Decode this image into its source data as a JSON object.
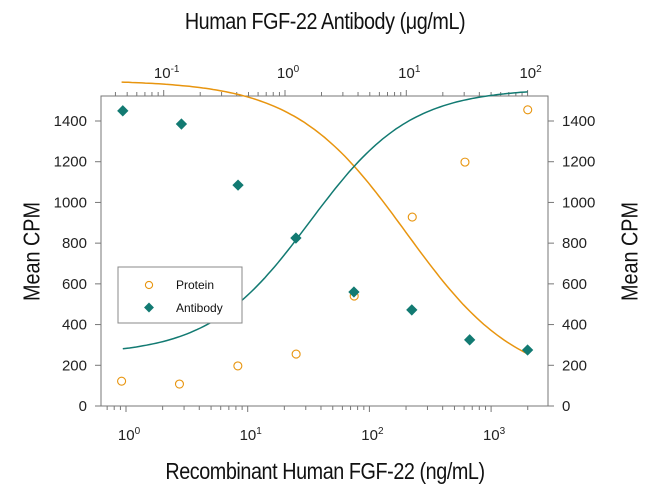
{
  "chart_data": {
    "type": "scatter",
    "title_top": "Human FGF-22 Antibody (μg/mL)",
    "xlabel": "Recombinant Human FGF-22 (ng/mL)",
    "ylabel_left": "Mean CPM",
    "ylabel_right": "Mean CPM",
    "x_bottom": {
      "scale": "log",
      "range": [
        0.7,
        3000
      ],
      "ticks": [
        1,
        10,
        100,
        1000
      ],
      "tick_labels": [
        "10^0",
        "10^1",
        "10^2",
        "10^3"
      ]
    },
    "x_top": {
      "scale": "log",
      "range": [
        0.04,
        140
      ],
      "ticks": [
        0.1,
        1,
        10,
        100
      ],
      "tick_labels": [
        "10^-1",
        "10^0",
        "10^1",
        "10^2"
      ]
    },
    "y": {
      "range": [
        0,
        1520
      ],
      "ticks": [
        0,
        200,
        400,
        600,
        800,
        1000,
        1200,
        1400
      ]
    },
    "legend": {
      "position": "inside-left",
      "entries": [
        "Protein",
        "Antibody"
      ]
    },
    "grid": false,
    "series": [
      {
        "name": "Protein",
        "axis": "bottom",
        "marker": "open-circle",
        "color": "#e8950f",
        "x": [
          0.92,
          2.75,
          8.3,
          25,
          75,
          225,
          610,
          2000
        ],
        "y": [
          122,
          108,
          197,
          255,
          540,
          928,
          1198,
          1455
        ],
        "fit": "4PL sigmoid increasing"
      },
      {
        "name": "Antibody",
        "axis": "top",
        "marker": "filled-diamond",
        "color": "#127a72",
        "x": [
          0.046,
          0.14,
          0.41,
          1.23,
          3.7,
          11.1,
          33.3,
          100
        ],
        "y": [
          1450,
          1385,
          1085,
          825,
          560,
          472,
          325,
          275
        ],
        "fit": "4PL sigmoid decreasing"
      }
    ]
  },
  "labels": {
    "top": "Human FGF-22 Antibody (μg/mL)",
    "bottom": "Recombinant Human FGF-22 (ng/mL)",
    "left": "Mean CPM",
    "right": "Mean CPM",
    "legend_protein": "Protein",
    "legend_antibody": "Antibody"
  }
}
